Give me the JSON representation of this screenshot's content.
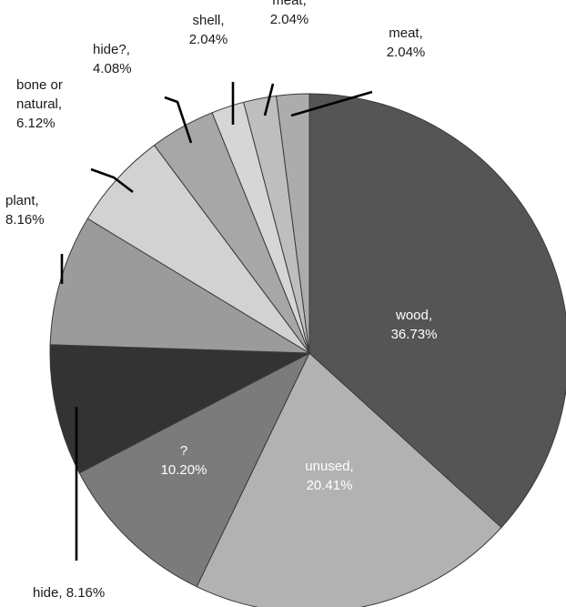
{
  "chart_data": {
    "type": "pie",
    "start": "12 o'clock",
    "direction": "clockwise",
    "slices": [
      {
        "label": "wood,",
        "value": "36.73%",
        "pct": 36.73,
        "color": "#555555"
      },
      {
        "label": "unused,",
        "value": "20.41%",
        "pct": 20.41,
        "color": "#b2b2b2"
      },
      {
        "label": "?",
        "value": "10.20%",
        "pct": 10.2,
        "color": "#7b7b7b"
      },
      {
        "label": "hide, 8.16%",
        "value": "",
        "pct": 8.16,
        "color": "#333333"
      },
      {
        "label": "plant,",
        "value": "8.16%",
        "pct": 8.16,
        "color": "#9b9b9b"
      },
      {
        "label": "bone or natural,",
        "value": "6.12%",
        "pct": 6.12,
        "color": "#d2d2d2"
      },
      {
        "label": "hide?,",
        "value": "4.08%",
        "pct": 4.08,
        "color": "#a7a7a7"
      },
      {
        "label": "shell,",
        "value": "2.04%",
        "pct": 2.04,
        "color": "#d6d6d6"
      },
      {
        "label": "hide or meat,",
        "value": "2.04%",
        "pct": 2.04,
        "color": "#bebebe"
      },
      {
        "label": "meat,",
        "value": "2.04%",
        "pct": 2.04,
        "color": "#acacac"
      }
    ]
  }
}
